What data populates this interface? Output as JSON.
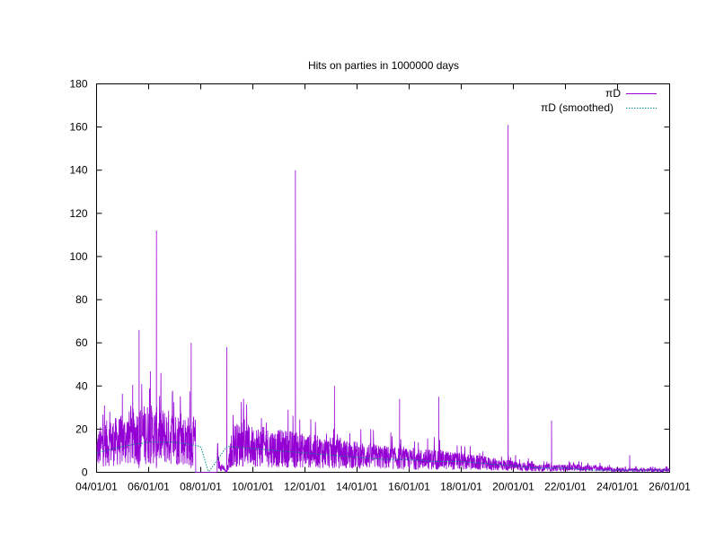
{
  "chart_data": {
    "type": "line",
    "title": "Hits on parties in 1000000 days",
    "xlabel": "",
    "ylabel": "",
    "x_axis_type": "date",
    "xlim": [
      "04/01/01",
      "26/01/01"
    ],
    "ylim": [
      0,
      180
    ],
    "y_ticks": [
      0,
      20,
      40,
      60,
      80,
      100,
      120,
      140,
      160,
      180
    ],
    "x_ticks": [
      "04/01/01",
      "06/01/01",
      "08/01/01",
      "10/01/01",
      "12/01/01",
      "14/01/01",
      "16/01/01",
      "18/01/01",
      "20/01/01",
      "22/01/01",
      "24/01/01",
      "26/01/01"
    ],
    "grid": false,
    "legend_position": "top-right",
    "series": [
      {
        "name": "πD",
        "color": "#9400d3",
        "style": "noisy spikes",
        "x": [
          "04/01/01",
          "04/08/01",
          "05/03/01",
          "05/08/01",
          "06/01/01",
          "06/08/01",
          "07/01/01",
          "07/08/01",
          "08/01/01",
          "09/01/01",
          "09/08/01",
          "10/01/01",
          "10/08/01",
          "11/01/01",
          "11/08/01",
          "12/01/01",
          "13/01/01",
          "14/01/01",
          "15/01/01",
          "16/01/01",
          "17/01/01",
          "18/01/01",
          "19/01/01",
          "20/01/01",
          "21/01/01",
          "22/01/01",
          "23/01/01",
          "24/01/01",
          "25/01/01",
          "26/01/01"
        ],
        "values": [
          10,
          13,
          15,
          16,
          18,
          17,
          16,
          15,
          14,
          0,
          13,
          12,
          12,
          11,
          11,
          10,
          9,
          8,
          7,
          6,
          6,
          5,
          4,
          3,
          2,
          2,
          2,
          1,
          1,
          1
        ],
        "peaks": [
          {
            "x": "05/20/01",
            "y": 66
          },
          {
            "x": "06/10/01",
            "y": 112
          },
          {
            "x": "07/20/01",
            "y": 60
          },
          {
            "x": "09/01/01",
            "y": 58
          },
          {
            "x": "11/20/01",
            "y": 140
          },
          {
            "x": "13/05/01",
            "y": 40
          },
          {
            "x": "15/20/01",
            "y": 34
          },
          {
            "x": "17/05/01",
            "y": 35
          },
          {
            "x": "19/25/01",
            "y": 161
          },
          {
            "x": "21/15/01",
            "y": 24
          },
          {
            "x": "24/15/01",
            "y": 8
          }
        ]
      },
      {
        "name": "πD (smoothed)",
        "color": "#008b8b",
        "style": "dotted smooth",
        "x": [
          "04/01/01",
          "05/01/01",
          "06/01/01",
          "07/01/01",
          "08/01/01",
          "08/10/01",
          "09/01/01",
          "10/01/01",
          "11/01/01",
          "12/01/01",
          "13/01/01",
          "14/01/01",
          "15/01/01",
          "16/01/01",
          "17/01/01",
          "18/01/01",
          "19/01/01",
          "20/01/01",
          "21/01/01",
          "22/01/01",
          "23/01/01",
          "24/01/01",
          "25/01/01",
          "26/01/01"
        ],
        "values": [
          9,
          12,
          14,
          14,
          12,
          0,
          12,
          11,
          10,
          9,
          8,
          7,
          6,
          6,
          5,
          5,
          4,
          3,
          2,
          2,
          1,
          1,
          1,
          1
        ]
      }
    ]
  }
}
